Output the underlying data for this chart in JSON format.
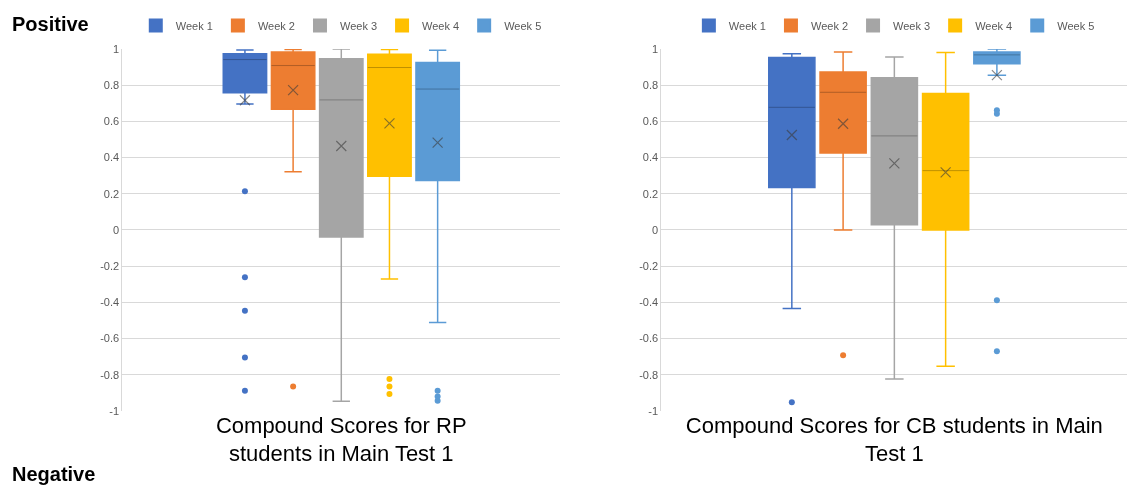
{
  "chart_data": [
    {
      "type": "box",
      "xlabel": "Compound Scores for RP students in Main Test 1",
      "categories": [
        null
      ],
      "ylim": [
        -1,
        1
      ],
      "yticks": [
        -1,
        -0.8,
        -0.6,
        -0.4,
        -0.2,
        0,
        0.2,
        0.4,
        0.6,
        0.8,
        1
      ],
      "grid": "y",
      "legend": "top",
      "tick_labels": "y",
      "marker": "circle",
      "annotations": [
        "Positive",
        "Negative"
      ],
      "series": [
        {
          "name": "Week 1",
          "color": "#4472c4",
          "boxes": [
            {
              "low": 0.696,
              "q1": 0.759,
              "median": 0.942,
              "q3": 0.974,
              "high": 0.995,
              "mean": 0.717,
              "outliers": [
                0.214,
                -0.262,
                -0.447,
                -0.705,
                -0.889
              ]
            }
          ]
        },
        {
          "name": "Week 2",
          "color": "#ed7d31",
          "boxes": [
            {
              "low": 0.322,
              "q1": 0.668,
              "median": 0.909,
              "q3": 0.984,
              "high": 0.998,
              "mean": 0.773,
              "outliers": [
                -0.866
              ]
            }
          ]
        },
        {
          "name": "Week 3",
          "color": "#a5a5a5",
          "boxes": [
            {
              "low": -0.947,
              "q1": -0.039,
              "median": 0.719,
              "q3": 0.947,
              "high": 1.0,
              "mean": 0.464
            }
          ]
        },
        {
          "name": "Week 4",
          "color": "#ffc000",
          "boxes": [
            {
              "low": -0.271,
              "q1": 0.297,
              "median": 0.898,
              "q3": 0.972,
              "high": 0.998,
              "mean": 0.589,
              "outliers": [
                -0.824,
                -0.866,
                -0.907
              ]
            }
          ]
        },
        {
          "name": "Week 5",
          "color": "#5b9bd5",
          "boxes": [
            {
              "low": -0.511,
              "q1": 0.274,
              "median": 0.779,
              "q3": 0.926,
              "high": 0.993,
              "mean": 0.483,
              "outliers": [
                -0.889,
                -0.921,
                -0.944
              ]
            }
          ]
        }
      ]
    },
    {
      "type": "box",
      "xlabel": "Compound Scores for CB students in Main Test 1",
      "categories": [
        null
      ],
      "ylim": [
        -1,
        1
      ],
      "yticks": [
        -1,
        -0.8,
        -0.6,
        -0.4,
        -0.2,
        0,
        0.2,
        0.4,
        0.6,
        0.8,
        1
      ],
      "grid": "y",
      "legend": "top",
      "tick_labels": "y",
      "marker": "circle",
      "series": [
        {
          "name": "Week 1",
          "color": "#4472c4",
          "boxes": [
            {
              "low": -0.434,
              "q1": 0.235,
              "median": 0.678,
              "q3": 0.954,
              "high": 0.974,
              "mean": 0.525,
              "outliers": [
                -0.953
              ]
            }
          ]
        },
        {
          "name": "Week 2",
          "color": "#ed7d31",
          "boxes": [
            {
              "low": 0.0,
              "q1": 0.425,
              "median": 0.761,
              "q3": 0.873,
              "high": 0.984,
              "mean": 0.587,
              "outliers": [
                -0.692
              ]
            }
          ]
        },
        {
          "name": "Week 3",
          "color": "#a5a5a5",
          "boxes": [
            {
              "low": -0.824,
              "q1": 0.029,
              "median": 0.52,
              "q3": 0.842,
              "high": 0.956,
              "mean": 0.368
            }
          ]
        },
        {
          "name": "Week 4",
          "color": "#ffc000",
          "boxes": [
            {
              "low": -0.753,
              "q1": 0.0,
              "median": 0.328,
              "q3": 0.754,
              "high": 0.981,
              "mean": 0.318
            }
          ]
        },
        {
          "name": "Week 5",
          "color": "#5b9bd5",
          "boxes": [
            {
              "low": 0.856,
              "q1": 0.919,
              "median": 0.968,
              "q3": 0.984,
              "high": 1.0,
              "mean": 0.856,
              "outliers": [
                0.662,
                0.643,
                -0.388,
                -0.671
              ]
            }
          ]
        }
      ]
    }
  ]
}
